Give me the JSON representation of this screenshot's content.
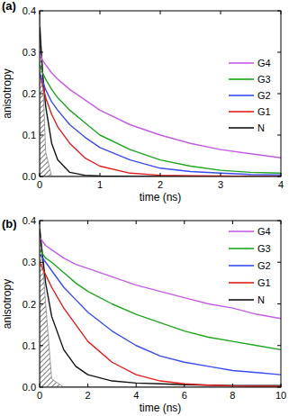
{
  "chart_data": [
    {
      "type": "line",
      "title": "(a)",
      "x_label": "time (ns)",
      "y_label": "anisotropy",
      "xlim": [
        0,
        4
      ],
      "ylim": [
        0,
        0.4
      ],
      "xticks": [
        0,
        1,
        2,
        3,
        4
      ],
      "yticks": [
        {
          "value": 0,
          "label": "0.0"
        },
        0.1,
        0.2,
        0.3,
        0.4
      ],
      "legend": "upper right",
      "x": [
        0,
        0.05,
        0.1,
        0.2,
        0.3,
        0.5,
        0.75,
        1,
        1.5,
        2,
        2.5,
        3,
        3.5,
        4
      ],
      "series": [
        {
          "name": "G4",
          "color": "#c65ce6",
          "values": [
            0.3,
            0.28,
            0.27,
            0.25,
            0.235,
            0.21,
            0.185,
            0.16,
            0.125,
            0.1,
            0.08,
            0.065,
            0.055,
            0.045
          ]
        },
        {
          "name": "G3",
          "color": "#1fa51f",
          "values": [
            0.27,
            0.25,
            0.235,
            0.21,
            0.19,
            0.16,
            0.13,
            0.1,
            0.065,
            0.04,
            0.025,
            0.015,
            0.01,
            0.008
          ]
        },
        {
          "name": "G2",
          "color": "#3a4cf0",
          "values": [
            0.25,
            0.23,
            0.21,
            0.18,
            0.16,
            0.125,
            0.095,
            0.07,
            0.04,
            0.02,
            0.012,
            0.008,
            0.005,
            0.004
          ]
        },
        {
          "name": "G1",
          "color": "#e01e1e",
          "values": [
            0.25,
            0.22,
            0.19,
            0.15,
            0.12,
            0.08,
            0.045,
            0.025,
            0.008,
            0.003,
            0.002,
            0.001,
            0,
            0
          ]
        },
        {
          "name": "N",
          "color": "#111111",
          "values": [
            0.36,
            0.25,
            0.17,
            0.08,
            0.04,
            0.01,
            0.003,
            0.001,
            0,
            0,
            0,
            0,
            0,
            0
          ]
        },
        {
          "type": "area",
          "color": "#888888",
          "values": [
            0.4,
            0.25,
            0.06,
            0,
            0,
            0,
            0,
            0,
            0,
            0,
            0,
            0,
            0,
            0
          ]
        }
      ]
    },
    {
      "type": "line",
      "title": "(b)",
      "x_label": "time (ns)",
      "y_label": "anisotropy",
      "xlim": [
        0,
        10
      ],
      "ylim": [
        0,
        0.4
      ],
      "xticks": [
        0,
        2,
        4,
        6,
        8,
        10
      ],
      "yticks": [
        {
          "value": 0,
          "label": "0.0"
        },
        0.1,
        0.2,
        0.3,
        0.4
      ],
      "legend": "upper right",
      "x": [
        0,
        0.25,
        0.5,
        1,
        1.5,
        2,
        3,
        4,
        5,
        6,
        7,
        8,
        9,
        10
      ],
      "series": [
        {
          "name": "G4",
          "color": "#c65ce6",
          "values": [
            0.36,
            0.34,
            0.33,
            0.31,
            0.295,
            0.285,
            0.265,
            0.245,
            0.23,
            0.215,
            0.2,
            0.19,
            0.175,
            0.165
          ]
        },
        {
          "name": "G3",
          "color": "#1fa51f",
          "values": [
            0.33,
            0.31,
            0.3,
            0.275,
            0.25,
            0.23,
            0.2,
            0.175,
            0.155,
            0.135,
            0.12,
            0.11,
            0.1,
            0.09
          ]
        },
        {
          "name": "G2",
          "color": "#3a4cf0",
          "values": [
            0.32,
            0.3,
            0.28,
            0.24,
            0.21,
            0.18,
            0.135,
            0.1,
            0.075,
            0.06,
            0.05,
            0.04,
            0.035,
            0.03
          ]
        },
        {
          "name": "G1",
          "color": "#e01e1e",
          "values": [
            0.3,
            0.27,
            0.24,
            0.19,
            0.15,
            0.11,
            0.06,
            0.03,
            0.015,
            0.008,
            0.005,
            0.003,
            0.002,
            0.002
          ]
        },
        {
          "name": "N",
          "color": "#111111",
          "values": [
            0.38,
            0.25,
            0.17,
            0.09,
            0.05,
            0.03,
            0.015,
            0.01,
            0.008,
            0.006,
            0.005,
            0.004,
            0.004,
            0.004
          ]
        },
        {
          "type": "area",
          "color": "#888888",
          "values": [
            0.4,
            0.2,
            0.02,
            0,
            0,
            0,
            0,
            0,
            0,
            0,
            0,
            0,
            0,
            0
          ]
        }
      ]
    }
  ]
}
